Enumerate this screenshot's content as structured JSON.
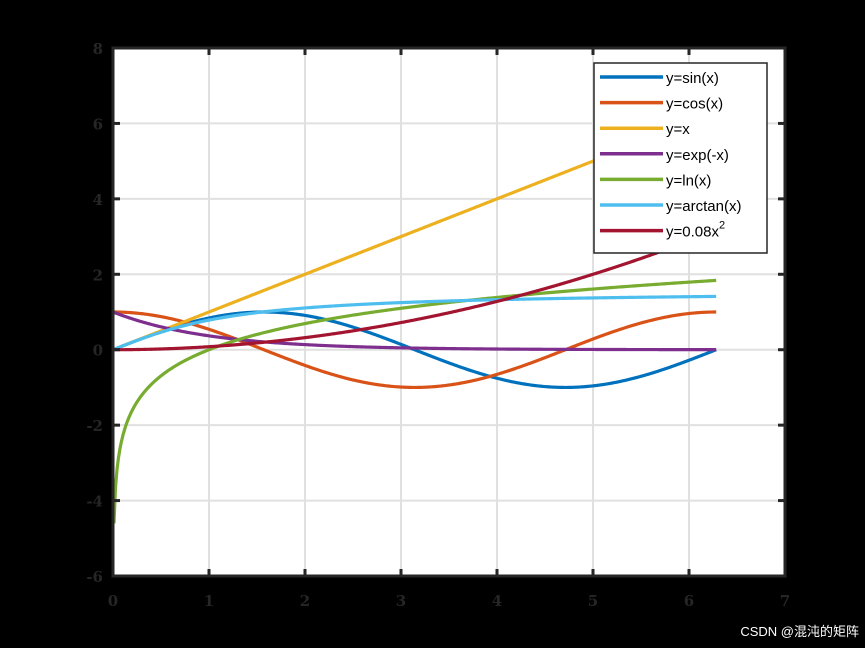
{
  "chart_data": {
    "type": "line",
    "title": "",
    "xlabel": "",
    "ylabel": "",
    "xlim": [
      0,
      7
    ],
    "ylim": [
      -6,
      8
    ],
    "x_ticks": [
      0,
      1,
      2,
      3,
      4,
      5,
      6,
      7
    ],
    "y_ticks": [
      -6,
      -4,
      -2,
      0,
      2,
      4,
      6,
      8
    ],
    "grid": true,
    "legend_position": "northeast",
    "x_range": [
      0.01,
      6.2832
    ],
    "series": [
      {
        "name": "y=sin(x)",
        "fn": "sin",
        "color": "#0072BD",
        "sample_points": {
          "x": [
            0,
            1.5708,
            3.1416,
            4.7124,
            6.2832
          ],
          "y": [
            0,
            1,
            0,
            -1,
            0
          ]
        }
      },
      {
        "name": "y=cos(x)",
        "fn": "cos",
        "color": "#D95319",
        "sample_points": {
          "x": [
            0,
            1.5708,
            3.1416,
            4.7124,
            6.2832
          ],
          "y": [
            1,
            0,
            -1,
            0,
            1
          ]
        }
      },
      {
        "name": "y=x",
        "fn": "linear",
        "color": "#EDB120",
        "sample_points": {
          "x": [
            0,
            2,
            4,
            6.2832
          ],
          "y": [
            0,
            2,
            4,
            6.2832
          ]
        }
      },
      {
        "name": "y=exp(-x)",
        "fn": "expneg",
        "color": "#7E2F8E",
        "sample_points": {
          "x": [
            0,
            1,
            2,
            6.2832
          ],
          "y": [
            1,
            0.368,
            0.135,
            0.002
          ]
        }
      },
      {
        "name": "y=ln(x)",
        "fn": "ln",
        "color": "#77AC30",
        "sample_points": {
          "x": [
            0.01,
            0.1,
            1,
            3,
            6.2832
          ],
          "y": [
            -4.605,
            -2.303,
            0,
            1.099,
            1.838
          ]
        }
      },
      {
        "name": "y=arctan(x)",
        "fn": "atan",
        "color": "#4DBEEE",
        "sample_points": {
          "x": [
            0,
            1,
            3,
            6.2832
          ],
          "y": [
            0,
            0.785,
            1.249,
            1.413
          ]
        }
      },
      {
        "name": "y=0.08x²",
        "fn": "quad",
        "color": "#A2142F",
        "sample_points": {
          "x": [
            0,
            2,
            4,
            6.2832
          ],
          "y": [
            0,
            0.32,
            1.28,
            3.158
          ]
        }
      }
    ]
  },
  "legend": {
    "items": [
      {
        "label": "y=sin(x)"
      },
      {
        "label": "y=cos(x)"
      },
      {
        "label": "y=x"
      },
      {
        "label": "y=exp(-x)"
      },
      {
        "label": "y=ln(x)"
      },
      {
        "label": "y=arctan(x)"
      },
      {
        "label": "y=0.08x",
        "superscript": "2"
      }
    ]
  },
  "watermark": "CSDN @混沌的矩阵"
}
